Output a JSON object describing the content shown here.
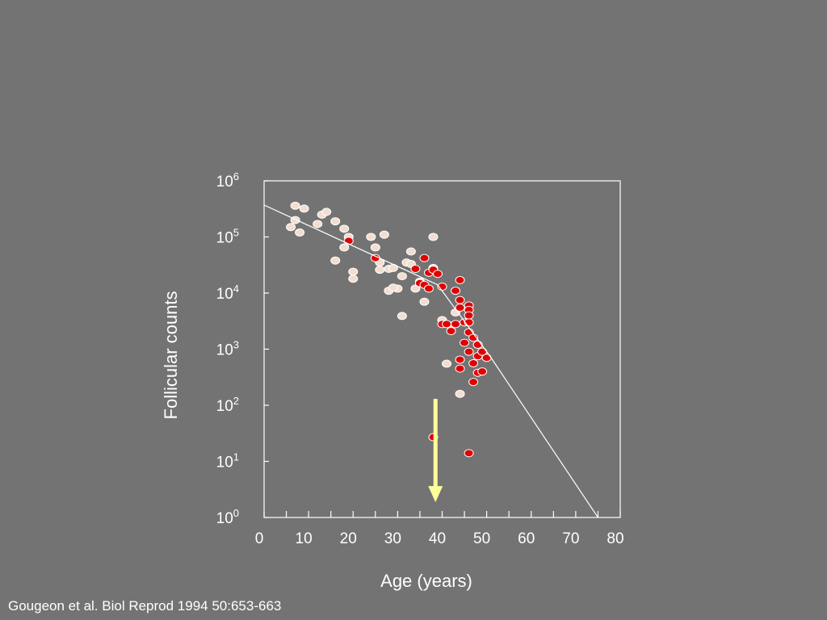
{
  "citation": "Gougeon et al. Biol Reprod 1994 50:653-663",
  "colors": {
    "background": "#737373",
    "axes": "#ffffff",
    "open_point_fill": "#f2ddd0",
    "filled_point_fill": "#e00000",
    "arrow": "#ffff99"
  },
  "chart_data": {
    "type": "scatter",
    "xlabel": "Age (years)",
    "ylabel": "Follicular counts",
    "xlim": [
      0,
      80
    ],
    "ylim_log10": [
      0,
      6
    ],
    "yscale": "log",
    "x_ticks": [
      "0",
      "10",
      "20",
      "30",
      "40",
      "50",
      "60",
      "70",
      "80"
    ],
    "y_ticks": [
      {
        "base": "10",
        "exp": "0"
      },
      {
        "base": "10",
        "exp": "1"
      },
      {
        "base": "10",
        "exp": "2"
      },
      {
        "base": "10",
        "exp": "3"
      },
      {
        "base": "10",
        "exp": "4"
      },
      {
        "base": "10",
        "exp": "5"
      },
      {
        "base": "10",
        "exp": "6"
      }
    ],
    "grid": false,
    "series": [
      {
        "style": "open",
        "points": [
          [
            7,
            360000
          ],
          [
            9,
            320000
          ],
          [
            7,
            200000
          ],
          [
            6,
            150000
          ],
          [
            8,
            120000
          ],
          [
            12,
            170000
          ],
          [
            13,
            250000
          ],
          [
            14,
            280000
          ],
          [
            16,
            190000
          ],
          [
            18,
            140000
          ],
          [
            19,
            100000
          ],
          [
            18,
            65000
          ],
          [
            16,
            38000
          ],
          [
            20,
            24000
          ],
          [
            20,
            18000
          ],
          [
            24,
            100000
          ],
          [
            25,
            65000
          ],
          [
            26,
            35000
          ],
          [
            26,
            26000
          ],
          [
            27,
            110000
          ],
          [
            28,
            27000
          ],
          [
            29,
            28000
          ],
          [
            28,
            11000
          ],
          [
            30,
            12000
          ],
          [
            29,
            12500
          ],
          [
            31,
            20000
          ],
          [
            32,
            35000
          ],
          [
            33,
            55000
          ],
          [
            33,
            33000
          ],
          [
            31,
            3900
          ],
          [
            34,
            12000
          ],
          [
            35,
            16000
          ],
          [
            36,
            7000
          ],
          [
            38,
            100000
          ],
          [
            38,
            28000
          ],
          [
            40,
            3300
          ],
          [
            41,
            550
          ],
          [
            42,
            2600
          ],
          [
            43,
            4500
          ],
          [
            44,
            160
          ]
        ]
      },
      {
        "style": "filled",
        "points": [
          [
            19,
            85000
          ],
          [
            25,
            42000
          ],
          [
            34,
            27000
          ],
          [
            36,
            42000
          ],
          [
            37,
            23000
          ],
          [
            35,
            15000
          ],
          [
            36,
            14000
          ],
          [
            37,
            12000
          ],
          [
            38,
            26000
          ],
          [
            39,
            22000
          ],
          [
            40,
            13000
          ],
          [
            43,
            11000
          ],
          [
            44,
            17000
          ],
          [
            44,
            7500
          ],
          [
            44,
            5500
          ],
          [
            46,
            6000
          ],
          [
            46,
            5000
          ],
          [
            46,
            4000
          ],
          [
            45,
            3000
          ],
          [
            46,
            2000
          ],
          [
            47,
            1600
          ],
          [
            48,
            1200
          ],
          [
            45,
            1300
          ],
          [
            46,
            900
          ],
          [
            48,
            750
          ],
          [
            49,
            900
          ],
          [
            50,
            700
          ],
          [
            44,
            650
          ],
          [
            44,
            450
          ],
          [
            47,
            560
          ],
          [
            48,
            380
          ],
          [
            49,
            400
          ],
          [
            47,
            260
          ],
          [
            40,
            2800
          ],
          [
            42,
            2100
          ],
          [
            38,
            27
          ],
          [
            46,
            14
          ],
          [
            43,
            2800
          ],
          [
            46,
            3000
          ],
          [
            41,
            2800
          ]
        ]
      }
    ],
    "fit_line": [
      [
        0,
        370000
      ],
      [
        39,
        14000
      ],
      [
        51,
        700
      ],
      [
        75,
        1
      ]
    ],
    "arrow": {
      "x": 38.5,
      "from_y": 130,
      "to_y": 2
    }
  }
}
